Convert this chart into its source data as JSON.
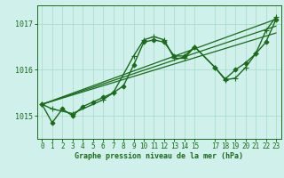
{
  "title": "Graphe pression niveau de la mer (hPa)",
  "background_color": "#cff0eb",
  "grid_color": "#aaddcc",
  "line_color": "#1a6b1a",
  "xlim": [
    -0.5,
    23.5
  ],
  "ylim": [
    1014.5,
    1017.4
  ],
  "yticks": [
    1015,
    1016,
    1017
  ],
  "xticks": [
    0,
    1,
    2,
    3,
    4,
    5,
    6,
    7,
    8,
    9,
    10,
    11,
    12,
    13,
    14,
    15,
    17,
    18,
    19,
    20,
    21,
    22,
    23
  ],
  "series": [
    {
      "x": [
        0,
        1,
        2,
        3,
        4,
        5,
        6,
        7,
        8,
        9,
        10,
        11,
        12,
        13,
        14,
        15,
        17,
        18,
        19,
        20,
        21,
        22,
        23
      ],
      "y": [
        1015.25,
        1014.85,
        1015.15,
        1015.0,
        1015.2,
        1015.3,
        1015.4,
        1015.5,
        1015.65,
        1016.1,
        1016.6,
        1016.65,
        1016.6,
        1016.3,
        1016.3,
        1016.5,
        1016.05,
        1015.8,
        1016.0,
        1016.15,
        1016.35,
        1016.6,
        1017.1
      ],
      "marker": "D",
      "markersize": 2.5,
      "linewidth": 1.0
    },
    {
      "x": [
        0,
        1,
        3,
        6,
        7,
        9,
        10,
        11,
        12,
        13,
        14,
        15,
        17,
        18,
        19,
        20,
        21,
        22,
        23
      ],
      "y": [
        1015.25,
        1015.15,
        1015.05,
        1015.35,
        1015.5,
        1016.3,
        1016.65,
        1016.72,
        1016.65,
        1016.25,
        1016.25,
        1016.5,
        1016.05,
        1015.78,
        1015.82,
        1016.05,
        1016.35,
        1016.85,
        1017.15
      ],
      "marker": "+",
      "markersize": 5,
      "linewidth": 1.0
    },
    {
      "x": [
        0,
        23
      ],
      "y": [
        1015.25,
        1017.1
      ],
      "marker": null,
      "markersize": 0,
      "linewidth": 0.9
    },
    {
      "x": [
        0,
        23
      ],
      "y": [
        1015.25,
        1016.95
      ],
      "marker": null,
      "markersize": 0,
      "linewidth": 0.9
    },
    {
      "x": [
        0,
        23
      ],
      "y": [
        1015.25,
        1016.8
      ],
      "marker": null,
      "markersize": 0,
      "linewidth": 0.9
    }
  ]
}
